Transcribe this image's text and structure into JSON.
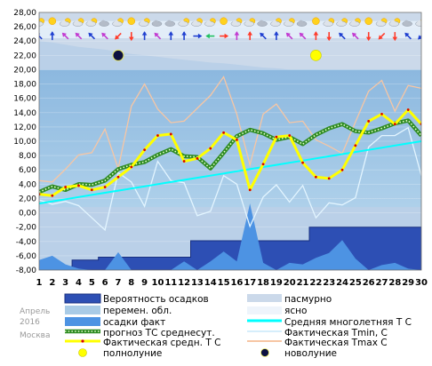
{
  "meta": {
    "month": "Апрель",
    "year": "2016",
    "city": "Москва"
  },
  "colors": {
    "panel": "#bad0e8",
    "ovc": "#cbd9ea",
    "sky": "#a9cbe6",
    "precip_prob": "#2d4fb4",
    "precip_prob_border": "#182f80",
    "precip_fact": "#4d93e3",
    "norm": "#00ffff",
    "forecast": "#2e8b22",
    "actual": "#ffff00",
    "tmin": "#e3f5ff",
    "tmax": "#f7c6a4",
    "full_moon": "#ffff00",
    "new_moon": "#0c1040"
  },
  "chart_data": {
    "type": "line",
    "x": [
      1,
      2,
      3,
      4,
      5,
      6,
      7,
      8,
      9,
      10,
      11,
      12,
      13,
      14,
      15,
      16,
      17,
      18,
      19,
      20,
      21,
      22,
      23,
      24,
      25,
      26,
      27,
      28,
      29,
      30
    ],
    "xlim": [
      1,
      30
    ],
    "ylim": [
      -8,
      28
    ],
    "ylabels": [
      "28,00",
      "26,00",
      "24,00",
      "22,00",
      "20,00",
      "18,00",
      "16,00",
      "14,00",
      "12,00",
      "10,00",
      "8,00",
      "6,00",
      "4,00",
      "2,00",
      "0,00",
      "-2,00",
      "-4,00",
      "-6,00",
      "-8,00"
    ],
    "series": [
      {
        "name": "Фактическая средн. T C",
        "values": [
          2.6,
          2.4,
          3.6,
          3.8,
          3.2,
          3.6,
          5.0,
          6.4,
          8.8,
          10.8,
          11.0,
          7.2,
          7.6,
          9.0,
          11.2,
          10.2,
          3.2,
          6.8,
          10.6,
          10.8,
          7.0,
          5.0,
          4.8,
          6.0,
          9.4,
          12.8,
          13.8,
          12.4,
          14.4,
          12.4
        ]
      },
      {
        "name": "прогноз ТС среднесут.",
        "values": [
          2.9,
          3.7,
          3.2,
          4.0,
          3.9,
          4.5,
          6.1,
          6.7,
          7.1,
          8.1,
          8.9,
          7.9,
          7.8,
          6.2,
          8.4,
          10.7,
          11.6,
          11.1,
          10.2,
          10.6,
          9.6,
          10.9,
          11.8,
          12.4,
          11.4,
          11.2,
          11.8,
          12.5,
          12.9,
          10.8
        ]
      },
      {
        "name": "Фактическая Tmin, C",
        "values": [
          1.8,
          1.2,
          1.6,
          1.0,
          -0.7,
          -2.4,
          5.6,
          4.3,
          0.9,
          7.2,
          4.5,
          4.2,
          -0.4,
          0.2,
          5.2,
          4.0,
          -1.9,
          2.2,
          3.9,
          1.5,
          3.8,
          -0.7,
          1.4,
          1.1,
          2.1,
          9.2,
          10.8,
          10.8,
          11.9,
          5.2
        ]
      },
      {
        "name": "Фактическая Tmax C",
        "values": [
          4.5,
          4.3,
          6.1,
          8.1,
          8.4,
          11.7,
          6.2,
          14.9,
          18.0,
          14.5,
          12.6,
          12.8,
          14.6,
          16.4,
          19.0,
          13.8,
          6.7,
          13.8,
          15.2,
          12.6,
          12.8,
          10.2,
          9.3,
          8.3,
          12.7,
          17.0,
          18.5,
          14.2,
          17.8,
          17.4
        ]
      },
      {
        "name": "Средняя многолетняя T C",
        "values": [
          1.3,
          1.6,
          1.9,
          2.2,
          2.5,
          2.8,
          3.1,
          3.4,
          3.7,
          4.0,
          4.3,
          4.6,
          4.9,
          5.2,
          5.5,
          5.8,
          6.1,
          6.4,
          6.7,
          7.0,
          7.3,
          7.6,
          7.9,
          8.2,
          8.5,
          8.8,
          9.1,
          9.4,
          9.7,
          10.0
        ]
      },
      {
        "name": "осадки факт",
        "values": [
          -6.6,
          -6.0,
          -7.2,
          -7.8,
          -8.0,
          -8.0,
          -5.5,
          -8.0,
          -8.0,
          -8.0,
          -8.0,
          -6.8,
          -8.0,
          -6.8,
          -5.4,
          -6.8,
          1.3,
          -7.0,
          -8.0,
          -7.0,
          -7.2,
          -6.3,
          -5.6,
          -3.8,
          -6.4,
          -8.0,
          -7.3,
          -7.0,
          -7.8,
          -8.0
        ]
      },
      {
        "name": "Вероятность осадков",
        "values": [
          -8.0,
          -7.5,
          -7.5,
          -6.6,
          -6.6,
          -6.2,
          -6.2,
          -6.2,
          -6.2,
          -6.2,
          -6.2,
          -6.2,
          -3.9,
          -3.9,
          -3.9,
          -3.9,
          -3.9,
          -3.9,
          -3.9,
          -3.9,
          -3.9,
          -2.0,
          -2.0,
          -2.0,
          -2.0,
          -2.0,
          -2.0,
          -2.0,
          -2.0,
          -2.0
        ]
      },
      {
        "name": "пасмурно",
        "values": [
          24.0,
          23.8,
          23.5,
          23.2,
          23.0,
          22.8,
          22.5,
          22.2,
          22.0,
          21.8,
          21.6,
          21.4,
          21.2,
          21.0,
          20.9,
          20.7,
          20.5,
          20.3,
          20.2,
          20.0,
          20.0,
          20.0,
          20.0,
          20.0,
          20.0,
          20.0,
          20.0,
          20.0,
          20.0,
          20.0
        ]
      },
      {
        "name": "перемен. обл.",
        "values": [
          0.8,
          0.8,
          0.8,
          0.8,
          0.8,
          0.8,
          0.8,
          0.8,
          0.8,
          0.8,
          0.8,
          0.8,
          0.8,
          0.8,
          0.8,
          0.8,
          0.8,
          0.8,
          0.8,
          0.8,
          0.8,
          0.8,
          0.8,
          0.8,
          0.8,
          0.8,
          0.8,
          0.8,
          0.8,
          0.8
        ]
      }
    ],
    "full_moon_day": 22,
    "new_moon_day": 7,
    "moon_y": 22.0,
    "weather_icons": [
      "partly-cloudy",
      "sunny",
      "partly-cloudy",
      "partly-cloudy",
      "partly-cloudy",
      "cloudy",
      "partly-cloudy",
      "sunny",
      "partly-cloudy",
      "cloudy",
      "cloudy",
      "partly-cloudy",
      "partly-cloudy",
      "partly-cloudy",
      "sunny",
      "partly-cloudy",
      "partly-cloudy",
      "cloudy",
      "partly-cloudy",
      "partly-cloudy",
      "cloudy",
      "sunny",
      "partly-cloudy",
      "partly-cloudy",
      "partly-cloudy",
      "sunny",
      "partly-cloudy",
      "partly-cloudy",
      "cloudy",
      "partly-cloudy"
    ],
    "wind_icons": [
      {
        "dir": "SE",
        "color": "#1f3fd0"
      },
      {
        "dir": "S",
        "color": "#1f3fd0"
      },
      {
        "dir": "SE",
        "color": "#c23bd1"
      },
      {
        "dir": "SE",
        "color": "#c23bd1"
      },
      {
        "dir": "SE",
        "color": "#1f3fd0"
      },
      {
        "dir": "SE",
        "color": "#c23bd1"
      },
      {
        "dir": "NE",
        "color": "#ff3b2a"
      },
      {
        "dir": "N",
        "color": "#ff3b2a"
      },
      {
        "dir": "S",
        "color": "#1f3fd0"
      },
      {
        "dir": "SE",
        "color": "#c23bd1"
      },
      {
        "dir": "S",
        "color": "#1f3fd0"
      },
      {
        "dir": "S",
        "color": "#1f3fd0"
      },
      {
        "dir": "W",
        "color": "#1f3fd0"
      },
      {
        "dir": "E",
        "color": "#20c060"
      },
      {
        "dir": "W",
        "color": "#ff3b2a"
      },
      {
        "dir": "S",
        "color": "#c23bd1"
      },
      {
        "dir": "S",
        "color": "#ff3b2a"
      },
      {
        "dir": "SE",
        "color": "#1f3fd0"
      },
      {
        "dir": "S",
        "color": "#1f3fd0"
      },
      {
        "dir": "SE",
        "color": "#c23bd1"
      },
      {
        "dir": "SE",
        "color": "#c23bd1"
      },
      {
        "dir": "S",
        "color": "#ff3b2a"
      },
      {
        "dir": "N",
        "color": "#ff3b2a"
      },
      {
        "dir": "SE",
        "color": "#1f3fd0"
      },
      {
        "dir": "SE",
        "color": "#c23bd1"
      },
      {
        "dir": "N",
        "color": "#ff3b2a"
      },
      {
        "dir": "NE",
        "color": "#ff3b2a"
      },
      {
        "dir": "N",
        "color": "#ff3b2a"
      },
      {
        "dir": "SE",
        "color": "#1f3fd0"
      },
      {
        "dir": "NE",
        "color": "#1f3fd0"
      }
    ]
  },
  "legend": {
    "precip_prob": "Вероятность осадков",
    "overcast": "пасмурно",
    "partly_cloudy": "перемен. обл.",
    "clear": "ясно",
    "precip_fact": "осадки факт",
    "norm": "Средняя многолетняя Т С",
    "forecast": "прогноз ТС среднесут.",
    "tmin": "Фактическая Tmin, C",
    "actual": "Фактическая средн. Т С",
    "tmax": "Фактическая Tmax C",
    "full_moon": "полнолуние",
    "new_moon": "новолуние"
  }
}
